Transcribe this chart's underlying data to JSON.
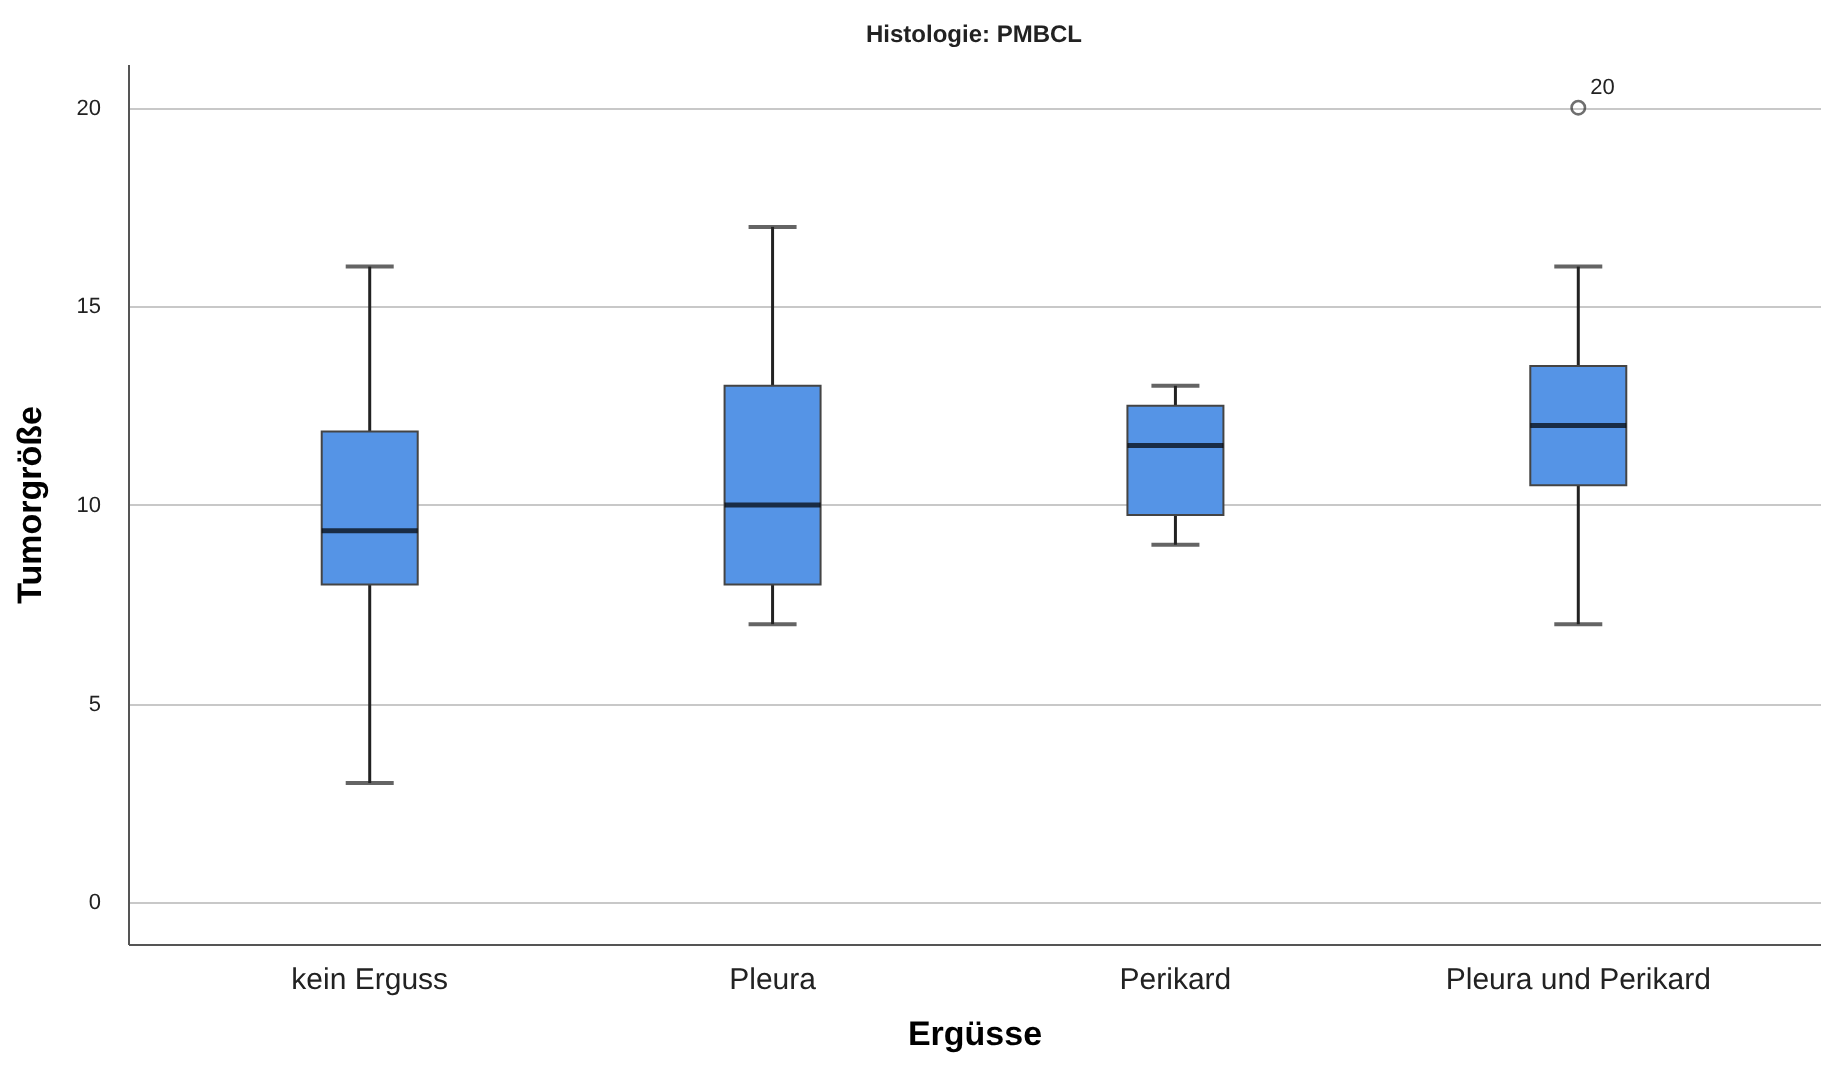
{
  "chart_data": {
    "type": "box",
    "title": "Histologie: PMBCL",
    "xlabel": "Ergüsse",
    "ylabel": "Tumorgröße",
    "categories": [
      "kein Erguss",
      "Pleura",
      "Perikard",
      "Pleura und Perikard"
    ],
    "series": [
      {
        "color": "#5594e6",
        "boxes": [
          {
            "low": 3,
            "q1": 8,
            "median": 9.35,
            "q3": 11.85,
            "high": 16
          },
          {
            "low": 7,
            "q1": 8,
            "median": 10,
            "q3": 13,
            "high": 17
          },
          {
            "low": 9,
            "q1": 9.75,
            "median": 11.5,
            "q3": 12.5,
            "high": 13
          },
          {
            "low": 7,
            "q1": 10.5,
            "median": 12,
            "q3": 13.5,
            "high": 16,
            "outliers": [
              20
            ]
          }
        ]
      }
    ],
    "ylim": [
      -1.05,
      21.1
    ],
    "yticks": [
      0,
      5,
      10,
      15,
      20
    ],
    "grid": "y",
    "marker": "circle",
    "annotations": [
      "20"
    ]
  }
}
